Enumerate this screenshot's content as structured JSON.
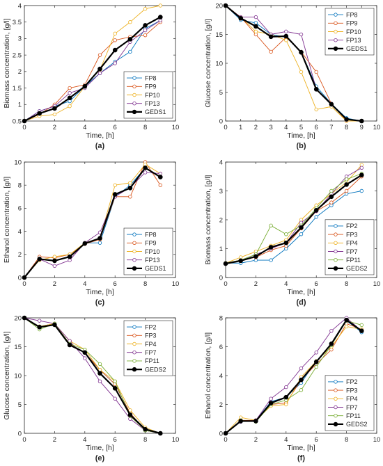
{
  "chart_data": [
    {
      "type": "line",
      "panel_label": "(a)",
      "xlabel": "Time, [h]",
      "ylabel": "Biomass concentration, [g/l]",
      "xlim": [
        0,
        10
      ],
      "ylim": [
        0.5,
        4
      ],
      "xticks": [
        0,
        2,
        4,
        6,
        8,
        10
      ],
      "yticks": [
        0.5,
        1,
        1.5,
        2,
        2.5,
        3,
        3.5,
        4
      ],
      "ytick_labels": [
        "0.5",
        "1",
        "1.5",
        "2",
        "2.5",
        "3",
        "3.5",
        "4"
      ],
      "legend": "top-left",
      "x": [
        0,
        1,
        2,
        3,
        4,
        5,
        6,
        7,
        8,
        9
      ],
      "series": [
        {
          "name": "FP8",
          "color": "#0072BD",
          "values": [
            0.5,
            0.8,
            0.95,
            1.1,
            1.55,
            1.95,
            2.3,
            2.6,
            3.3,
            3.55
          ]
        },
        {
          "name": "FP9",
          "color": "#D95319",
          "values": [
            0.5,
            0.7,
            1.0,
            1.5,
            1.6,
            2.5,
            2.95,
            3.05,
            3.1,
            3.5
          ]
        },
        {
          "name": "FP10",
          "color": "#EDB120",
          "values": [
            0.5,
            0.65,
            0.7,
            0.95,
            1.55,
            2.05,
            3.15,
            3.5,
            3.9,
            4.0
          ]
        },
        {
          "name": "FP13",
          "color": "#7E2F8E",
          "values": [
            0.5,
            0.8,
            0.95,
            1.35,
            1.5,
            1.95,
            2.25,
            2.9,
            3.25,
            3.55
          ]
        },
        {
          "name": "GEDS1",
          "color": "#000000",
          "bold": true,
          "values": [
            0.5,
            0.73,
            0.88,
            1.2,
            1.55,
            2.08,
            2.65,
            2.98,
            3.4,
            3.65
          ]
        }
      ]
    },
    {
      "type": "line",
      "panel_label": "(b)",
      "xlabel": "Time, [h]",
      "ylabel": "Glucose concentration, [g/l]",
      "xlim": [
        0,
        10
      ],
      "ylim": [
        0,
        20
      ],
      "xticks": [
        0,
        1,
        2,
        3,
        4,
        5,
        6,
        7,
        8,
        9,
        10
      ],
      "yticks": [
        0,
        5,
        10,
        15,
        20
      ],
      "ytick_labels": [
        "0",
        "5",
        "10",
        "15",
        "20"
      ],
      "legend": "top-right",
      "x": [
        0,
        1,
        2,
        3,
        4,
        5,
        6,
        7,
        8,
        9
      ],
      "series": [
        {
          "name": "FP8",
          "color": "#0072BD",
          "values": [
            20,
            17.5,
            17,
            15,
            14.5,
            12,
            6,
            3,
            0.5,
            0
          ]
        },
        {
          "name": "FP9",
          "color": "#D95319",
          "values": [
            20,
            18,
            15,
            12,
            14.5,
            12,
            8.5,
            3,
            0,
            0
          ]
        },
        {
          "name": "FP10",
          "color": "#EDB120",
          "values": [
            20,
            18,
            15.5,
            15,
            14,
            8.5,
            2,
            2.5,
            0,
            0
          ]
        },
        {
          "name": "FP13",
          "color": "#7E2F8E",
          "values": [
            20,
            18,
            18,
            15,
            15.5,
            15,
            5.5,
            3,
            0.2,
            0
          ]
        },
        {
          "name": "GEDS1",
          "color": "#000000",
          "bold": true,
          "values": [
            20,
            17.8,
            16.4,
            14.6,
            14.7,
            11.9,
            5.5,
            2.9,
            0.3,
            0
          ]
        }
      ]
    },
    {
      "type": "line",
      "panel_label": "(c)",
      "xlabel": "Time, [h]",
      "ylabel": "Ethanol concentration, [g/l]",
      "xlim": [
        0,
        10
      ],
      "ylim": [
        0,
        10
      ],
      "xticks": [
        0,
        2,
        4,
        6,
        8,
        10
      ],
      "yticks": [
        0,
        2,
        4,
        6,
        8,
        10
      ],
      "ytick_labels": [
        "0",
        "2",
        "4",
        "6",
        "8",
        "10"
      ],
      "legend": "bottom-right",
      "x": [
        0,
        1,
        2,
        3,
        4,
        5,
        6,
        7,
        8,
        9
      ],
      "series": [
        {
          "name": "FP8",
          "color": "#0072BD",
          "values": [
            0,
            1.6,
            1.5,
            1.8,
            3.0,
            3.0,
            7.0,
            8.0,
            9.5,
            8.7
          ]
        },
        {
          "name": "FP9",
          "color": "#D95319",
          "values": [
            0,
            1.8,
            1.7,
            2.0,
            2.9,
            3.3,
            7.0,
            7.0,
            10.0,
            8.0
          ]
        },
        {
          "name": "FP10",
          "color": "#EDB120",
          "values": [
            0,
            1.5,
            1.8,
            2.0,
            3.0,
            3.4,
            8.0,
            8.2,
            9.8,
            9.0
          ]
        },
        {
          "name": "FP13",
          "color": "#7E2F8E",
          "values": [
            0,
            1.6,
            1.0,
            1.5,
            3.0,
            3.9,
            7.0,
            7.8,
            9.1,
            9.0
          ]
        },
        {
          "name": "GEDS1",
          "color": "#000000",
          "bold": true,
          "values": [
            0,
            1.6,
            1.45,
            1.8,
            2.95,
            3.4,
            7.2,
            7.75,
            9.5,
            8.7
          ]
        }
      ]
    },
    {
      "type": "line",
      "panel_label": "(d)",
      "xlabel": "Time, [h]",
      "ylabel": "Biomass concentration, [g/l]",
      "xlim": [
        0,
        10
      ],
      "ylim": [
        0,
        4
      ],
      "xticks": [
        0,
        2,
        4,
        6,
        8,
        10
      ],
      "yticks": [
        0,
        1,
        2,
        3,
        4
      ],
      "ytick_labels": [
        "0",
        "1",
        "2",
        "3",
        "4"
      ],
      "legend": "bottom-right",
      "x": [
        0,
        1,
        2,
        3,
        4,
        5,
        6,
        7,
        8,
        9
      ],
      "series": [
        {
          "name": "FP2",
          "color": "#0072BD",
          "values": [
            0.5,
            0.5,
            0.6,
            0.6,
            1.0,
            1.5,
            2.1,
            2.5,
            2.9,
            3.0
          ]
        },
        {
          "name": "FP3",
          "color": "#D95319",
          "values": [
            0.5,
            0.6,
            0.7,
            0.95,
            1.1,
            1.7,
            2.3,
            2.6,
            3.0,
            3.5
          ]
        },
        {
          "name": "FP4",
          "color": "#EDB120",
          "values": [
            0.5,
            0.7,
            0.9,
            1.1,
            1.3,
            2.0,
            2.5,
            2.9,
            3.3,
            3.9
          ]
        },
        {
          "name": "FP7",
          "color": "#7E2F8E",
          "values": [
            0.5,
            0.6,
            0.8,
            1.0,
            1.2,
            1.9,
            2.3,
            2.9,
            3.5,
            3.8
          ]
        },
        {
          "name": "FP11",
          "color": "#77AC30",
          "values": [
            0.5,
            0.6,
            0.8,
            1.8,
            1.5,
            1.8,
            2.4,
            3.0,
            3.4,
            3.6
          ]
        },
        {
          "name": "GEDS2",
          "color": "#000000",
          "bold": true,
          "values": [
            0.48,
            0.58,
            0.73,
            1.05,
            1.2,
            1.73,
            2.33,
            2.8,
            3.22,
            3.55
          ]
        }
      ]
    },
    {
      "type": "line",
      "panel_label": "(e)",
      "xlabel": "Time, [h]",
      "ylabel": "Glucose concentration, [g/l]",
      "xlim": [
        0,
        10
      ],
      "ylim": [
        0,
        20
      ],
      "xticks": [
        0,
        2,
        4,
        6,
        8,
        10
      ],
      "yticks": [
        0,
        5,
        10,
        15,
        20
      ],
      "ytick_labels": [
        "0",
        "5",
        "10",
        "15",
        "20"
      ],
      "legend": "top-right",
      "x": [
        0,
        1,
        2,
        3,
        4,
        5,
        6,
        7,
        8,
        9
      ],
      "series": [
        {
          "name": "FP2",
          "color": "#0072BD",
          "values": [
            20,
            18.5,
            19,
            15.5,
            14,
            11,
            8.5,
            3.5,
            0.5,
            0
          ]
        },
        {
          "name": "FP3",
          "color": "#D95319",
          "values": [
            20,
            18.5,
            19,
            15.5,
            14,
            11,
            8.5,
            3.5,
            0.5,
            0
          ]
        },
        {
          "name": "FP4",
          "color": "#EDB120",
          "values": [
            20,
            18.5,
            19,
            16,
            14.5,
            11,
            9,
            4,
            1,
            0
          ]
        },
        {
          "name": "FP7",
          "color": "#7E2F8E",
          "values": [
            20,
            19.5,
            19,
            16,
            13,
            9,
            6,
            2.5,
            0.5,
            0
          ]
        },
        {
          "name": "FP11",
          "color": "#77AC30",
          "values": [
            20,
            18,
            19,
            15.5,
            14.5,
            12,
            9,
            3,
            0.5,
            0
          ]
        },
        {
          "name": "GEDS2",
          "color": "#000000",
          "bold": true,
          "values": [
            20,
            18.4,
            18.8,
            15.3,
            14,
            10.4,
            7.8,
            3.2,
            0.7,
            0
          ]
        }
      ]
    },
    {
      "type": "line",
      "panel_label": "(f)",
      "xlabel": "Time, [h]",
      "ylabel": "Ethanol concentration, [g/l]",
      "xlim": [
        0,
        10
      ],
      "ylim": [
        0,
        8
      ],
      "xticks": [
        0,
        2,
        4,
        6,
        8,
        10
      ],
      "yticks": [
        0,
        2,
        4,
        6,
        8
      ],
      "ytick_labels": [
        "0",
        "2",
        "4",
        "6",
        "8"
      ],
      "legend": "bottom-right",
      "x": [
        0,
        1,
        2,
        3,
        4,
        5,
        6,
        7,
        8,
        9
      ],
      "series": [
        {
          "name": "FP2",
          "color": "#0072BD",
          "values": [
            0,
            0.8,
            0.9,
            2.2,
            2.5,
            3.5,
            5.0,
            6.2,
            7.8,
            7.0
          ]
        },
        {
          "name": "FP3",
          "color": "#D95319",
          "values": [
            0,
            0.9,
            0.9,
            2.0,
            2.1,
            3.7,
            4.8,
            5.8,
            7.6,
            7.2
          ]
        },
        {
          "name": "FP4",
          "color": "#EDB120",
          "values": [
            0,
            1.1,
            0.9,
            1.9,
            2.0,
            3.9,
            5.0,
            6.0,
            7.4,
            7.2
          ]
        },
        {
          "name": "FP7",
          "color": "#7E2F8E",
          "values": [
            0,
            0.8,
            0.9,
            2.4,
            3.2,
            4.5,
            5.6,
            7.1,
            8.0,
            7.1
          ]
        },
        {
          "name": "FP11",
          "color": "#77AC30",
          "values": [
            0,
            0.9,
            0.8,
            2.0,
            2.3,
            3.0,
            4.6,
            6.1,
            7.8,
            7.5
          ]
        },
        {
          "name": "GEDS2",
          "color": "#000000",
          "bold": true,
          "values": [
            0,
            0.85,
            0.85,
            2.1,
            2.5,
            3.7,
            4.95,
            6.2,
            7.85,
            7.1
          ]
        }
      ]
    }
  ]
}
